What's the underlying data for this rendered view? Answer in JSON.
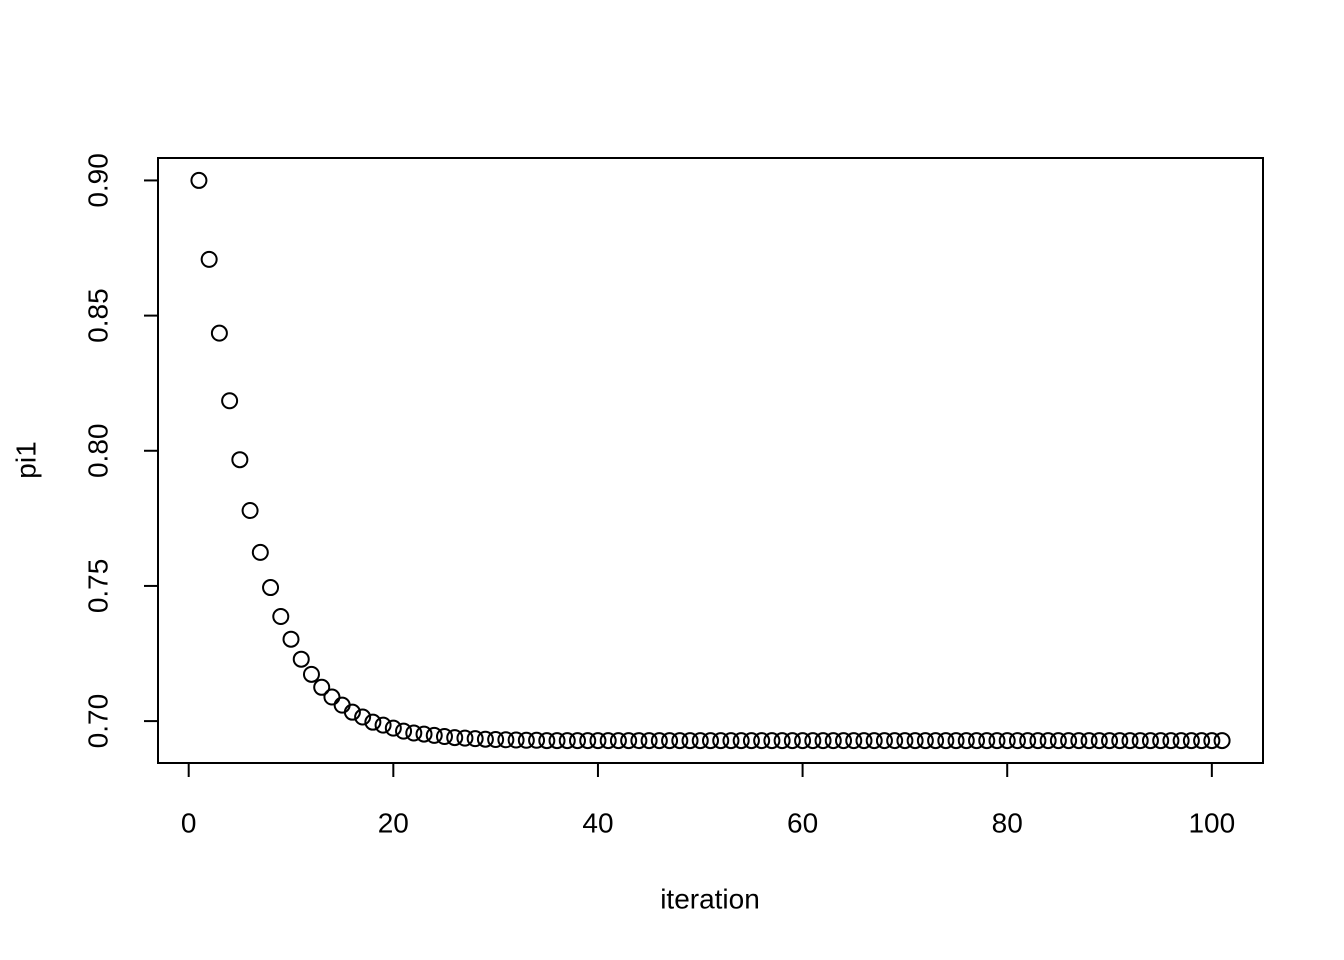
{
  "chart_data": {
    "type": "scatter",
    "x_label": "iteration",
    "y_label": "pi1",
    "x": [
      1,
      2,
      3,
      4,
      5,
      6,
      7,
      8,
      9,
      10,
      11,
      12,
      13,
      14,
      15,
      16,
      17,
      18,
      19,
      20,
      21,
      22,
      23,
      24,
      25,
      26,
      27,
      28,
      29,
      30,
      31,
      32,
      33,
      34,
      35,
      36,
      37,
      38,
      39,
      40,
      41,
      42,
      43,
      44,
      45,
      46,
      47,
      48,
      49,
      50,
      51,
      52,
      53,
      54,
      55,
      56,
      57,
      58,
      59,
      60,
      61,
      62,
      63,
      64,
      65,
      66,
      67,
      68,
      69,
      70,
      71,
      72,
      73,
      74,
      75,
      76,
      77,
      78,
      79,
      80,
      81,
      82,
      83,
      84,
      85,
      86,
      87,
      88,
      89,
      90,
      91,
      92,
      93,
      94,
      95,
      96,
      97,
      98,
      99,
      100,
      101
    ],
    "values": [
      0.9,
      0.8708,
      0.8435,
      0.8185,
      0.7967,
      0.7779,
      0.7624,
      0.7494,
      0.7387,
      0.7303,
      0.7229,
      0.7173,
      0.7125,
      0.7089,
      0.7059,
      0.7033,
      0.7015,
      0.6996,
      0.6985,
      0.6974,
      0.6963,
      0.6956,
      0.6952,
      0.6947,
      0.6943,
      0.6939,
      0.6937,
      0.6935,
      0.6933,
      0.6932,
      0.6931,
      0.693,
      0.6929,
      0.6929,
      0.6928,
      0.6928,
      0.6928,
      0.6928,
      0.6928,
      0.6928,
      0.6928,
      0.6928,
      0.6928,
      0.6928,
      0.6928,
      0.6928,
      0.6928,
      0.6928,
      0.6928,
      0.6928,
      0.6928,
      0.6928,
      0.6928,
      0.6928,
      0.6928,
      0.6928,
      0.6928,
      0.6928,
      0.6928,
      0.6928,
      0.6928,
      0.6928,
      0.6928,
      0.6928,
      0.6928,
      0.6928,
      0.6928,
      0.6928,
      0.6928,
      0.6928,
      0.6928,
      0.6928,
      0.6928,
      0.6928,
      0.6928,
      0.6928,
      0.6928,
      0.6928,
      0.6928,
      0.6928,
      0.6928,
      0.6928,
      0.6928,
      0.6928,
      0.6928,
      0.6928,
      0.6928,
      0.6928,
      0.6928,
      0.6928,
      0.6928,
      0.6928,
      0.6928,
      0.6928,
      0.6928,
      0.6928,
      0.6928,
      0.6928,
      0.6928,
      0.6928,
      0.6928
    ],
    "color": "#000000",
    "xlim": [
      -3,
      105
    ],
    "ylim": [
      0.6845,
      0.9083
    ],
    "xticks": [
      0,
      20,
      40,
      60,
      80,
      100
    ],
    "yticks": [
      {
        "value": 0.7,
        "label": "0.70"
      },
      0.75,
      {
        "value": 0.8,
        "label": "0.80"
      },
      0.85,
      {
        "value": 0.9,
        "label": "0.90"
      }
    ]
  }
}
